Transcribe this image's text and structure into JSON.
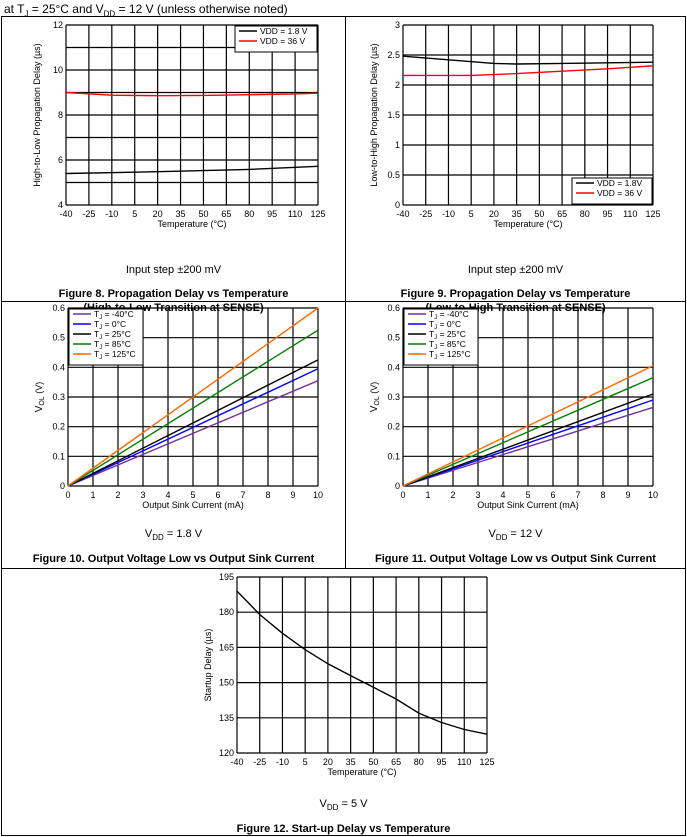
{
  "header": {
    "pre": "at T",
    "sub1": "J",
    "mid": " = 25°C and V",
    "sub2": "DD",
    "post": " = 12 V (unless otherwise noted)"
  },
  "colors": {
    "purple": "#7030a0",
    "blue": "#0000ff",
    "black": "#000000",
    "green": "#008000",
    "orange": "#ff6600",
    "red": "#ff0000"
  },
  "panels": {
    "fig8": {
      "condition": "Input step ±200 mV",
      "caption1": "Figure 8. Propagation Delay vs Temperature",
      "caption2": "(High-to-Low Transition at SENSE)"
    },
    "fig9": {
      "condition": "Input step ±200 mV",
      "caption1": "Figure 9. Propagation Delay vs Temperature",
      "caption2": "(Low-to-High Transition at SENSE)"
    },
    "fig10": {
      "cond_pre": "V",
      "cond_sub": "DD",
      "cond_post": " = 1.8 V",
      "caption1": "Figure 10. Output Voltage Low vs Output Sink Current"
    },
    "fig11": {
      "cond_pre": "V",
      "cond_sub": "DD",
      "cond_post": " = 12 V",
      "caption1": "Figure 11. Output Voltage Low vs Output Sink Current"
    },
    "fig12": {
      "cond_pre": "V",
      "cond_sub": "DD",
      "cond_post": " = 5 V",
      "caption1": "Figure 12. Start-up Delay vs Temperature"
    }
  },
  "chart_data": [
    {
      "id": "fig8",
      "type": "line",
      "xlabel": "Temperature (°C)",
      "ylabel": "High-to-Low Propagation Delay (µs)",
      "xlim": [
        -40,
        125
      ],
      "ylim": [
        4,
        12
      ],
      "xticks": [
        "-40",
        "-25",
        "-10",
        "5",
        "20",
        "35",
        "50",
        "65",
        "80",
        "95",
        "110",
        "125"
      ],
      "yticks": [
        "4",
        "6",
        "8",
        "10",
        "12"
      ],
      "vgrid": 11,
      "hgrid": 8,
      "series": [
        {
          "name": "VDD = 1.8 V",
          "color": "#000000",
          "x": [
            -40,
            20,
            80,
            125
          ],
          "y": [
            5.4,
            5.48,
            5.58,
            5.72
          ]
        },
        {
          "name": "VDD = 36 V",
          "color": "#ff0000",
          "x": [
            -40,
            -10,
            20,
            50,
            80,
            110,
            125
          ],
          "y": [
            9.0,
            8.88,
            8.86,
            8.87,
            8.9,
            8.94,
            8.97
          ]
        }
      ]
    },
    {
      "id": "fig9",
      "type": "line",
      "xlabel": "Temperature (°C)",
      "ylabel": "Low-to-High Propagation Delay (µs)",
      "xlim": [
        -40,
        125
      ],
      "ylim": [
        0,
        3
      ],
      "xticks": [
        "-40",
        "-25",
        "-10",
        "5",
        "20",
        "35",
        "50",
        "65",
        "80",
        "95",
        "110",
        "125"
      ],
      "yticks": [
        "0",
        "0.5",
        "1",
        "1.5",
        "2",
        "2.5",
        "3"
      ],
      "vgrid": 11,
      "hgrid": 6,
      "series": [
        {
          "name": "VDD = 1.8V",
          "color": "#000000",
          "x": [
            -40,
            -10,
            20,
            35,
            65,
            95,
            125
          ],
          "y": [
            2.48,
            2.42,
            2.36,
            2.35,
            2.36,
            2.37,
            2.38
          ]
        },
        {
          "name": "VDD = 36 V",
          "color": "#ff0000",
          "x": [
            -40,
            5,
            35,
            65,
            95,
            125
          ],
          "y": [
            2.16,
            2.16,
            2.19,
            2.23,
            2.27,
            2.32
          ]
        }
      ]
    },
    {
      "id": "fig10",
      "type": "line",
      "xlabel": "Output Sink Current (mA)",
      "ylabel_pre": "V",
      "ylabel_sub": "OL",
      "ylabel_post": " (V)",
      "xlim": [
        0,
        10
      ],
      "ylim": [
        0,
        0.6
      ],
      "xticks": [
        "0",
        "1",
        "2",
        "3",
        "4",
        "5",
        "6",
        "7",
        "8",
        "9",
        "10"
      ],
      "yticks": [
        "0",
        "0.1",
        "0.2",
        "0.3",
        "0.4",
        "0.5",
        "0.6"
      ],
      "vgrid": 10,
      "hgrid": 6,
      "series": [
        {
          "name": "T",
          "sub": "J",
          "post": " = -40°C",
          "color": "#7030a0",
          "x": [
            0,
            10
          ],
          "y": [
            0,
            0.355
          ]
        },
        {
          "name": "T",
          "sub": "J",
          "post": " = 0°C",
          "color": "#0000ff",
          "x": [
            0,
            10
          ],
          "y": [
            0,
            0.395
          ]
        },
        {
          "name": "T",
          "sub": "J",
          "post": " = 25°C",
          "color": "#000000",
          "x": [
            0,
            10
          ],
          "y": [
            0,
            0.425
          ]
        },
        {
          "name": "T",
          "sub": "J",
          "post": " = 85°C",
          "color": "#008000",
          "x": [
            0,
            10
          ],
          "y": [
            0,
            0.525
          ]
        },
        {
          "name": "T",
          "sub": "J",
          "post": " = 125°C",
          "color": "#ff6600",
          "x": [
            0,
            10
          ],
          "y": [
            0,
            0.6
          ]
        }
      ]
    },
    {
      "id": "fig11",
      "type": "line",
      "xlabel": "Output Sink Current (mA)",
      "ylabel_pre": "V",
      "ylabel_sub": "OL",
      "ylabel_post": " (V)",
      "xlim": [
        0,
        10
      ],
      "ylim": [
        0,
        0.6
      ],
      "xticks": [
        "0",
        "1",
        "2",
        "3",
        "4",
        "5",
        "6",
        "7",
        "8",
        "9",
        "10"
      ],
      "yticks": [
        "0",
        "0.1",
        "0.2",
        "0.3",
        "0.4",
        "0.5",
        "0.6"
      ],
      "vgrid": 10,
      "hgrid": 6,
      "series": [
        {
          "name": "T",
          "sub": "J",
          "post": " = -40°C",
          "color": "#7030a0",
          "x": [
            0,
            10
          ],
          "y": [
            0,
            0.265
          ]
        },
        {
          "name": "T",
          "sub": "J",
          "post": " = 0°C",
          "color": "#0000ff",
          "x": [
            0,
            10
          ],
          "y": [
            0,
            0.29
          ]
        },
        {
          "name": "T",
          "sub": "J",
          "post": " = 25°C",
          "color": "#000000",
          "x": [
            0,
            10
          ],
          "y": [
            0,
            0.31
          ]
        },
        {
          "name": "T",
          "sub": "J",
          "post": " = 85°C",
          "color": "#008000",
          "x": [
            0,
            10
          ],
          "y": [
            0,
            0.365
          ]
        },
        {
          "name": "T",
          "sub": "J",
          "post": " = 125°C",
          "color": "#ff6600",
          "x": [
            0,
            10
          ],
          "y": [
            0,
            0.405
          ]
        }
      ]
    },
    {
      "id": "fig12",
      "type": "line",
      "xlabel": "Temperature (°C)",
      "ylabel": "Startup Delay (µs)",
      "xlim": [
        -40,
        125
      ],
      "ylim": [
        120,
        195
      ],
      "xticks": [
        "-40",
        "-25",
        "-10",
        "5",
        "20",
        "35",
        "50",
        "65",
        "80",
        "95",
        "110",
        "125"
      ],
      "yticks": [
        "120",
        "135",
        "150",
        "165",
        "180",
        "195"
      ],
      "vgrid": 11,
      "hgrid": 5,
      "series": [
        {
          "name": "Startup Delay",
          "color": "#000000",
          "x": [
            -40,
            -25,
            -10,
            5,
            20,
            35,
            50,
            65,
            80,
            95,
            110,
            125
          ],
          "y": [
            189,
            179,
            171,
            164,
            158,
            153,
            148,
            143,
            137,
            133,
            130,
            128
          ]
        }
      ]
    }
  ]
}
